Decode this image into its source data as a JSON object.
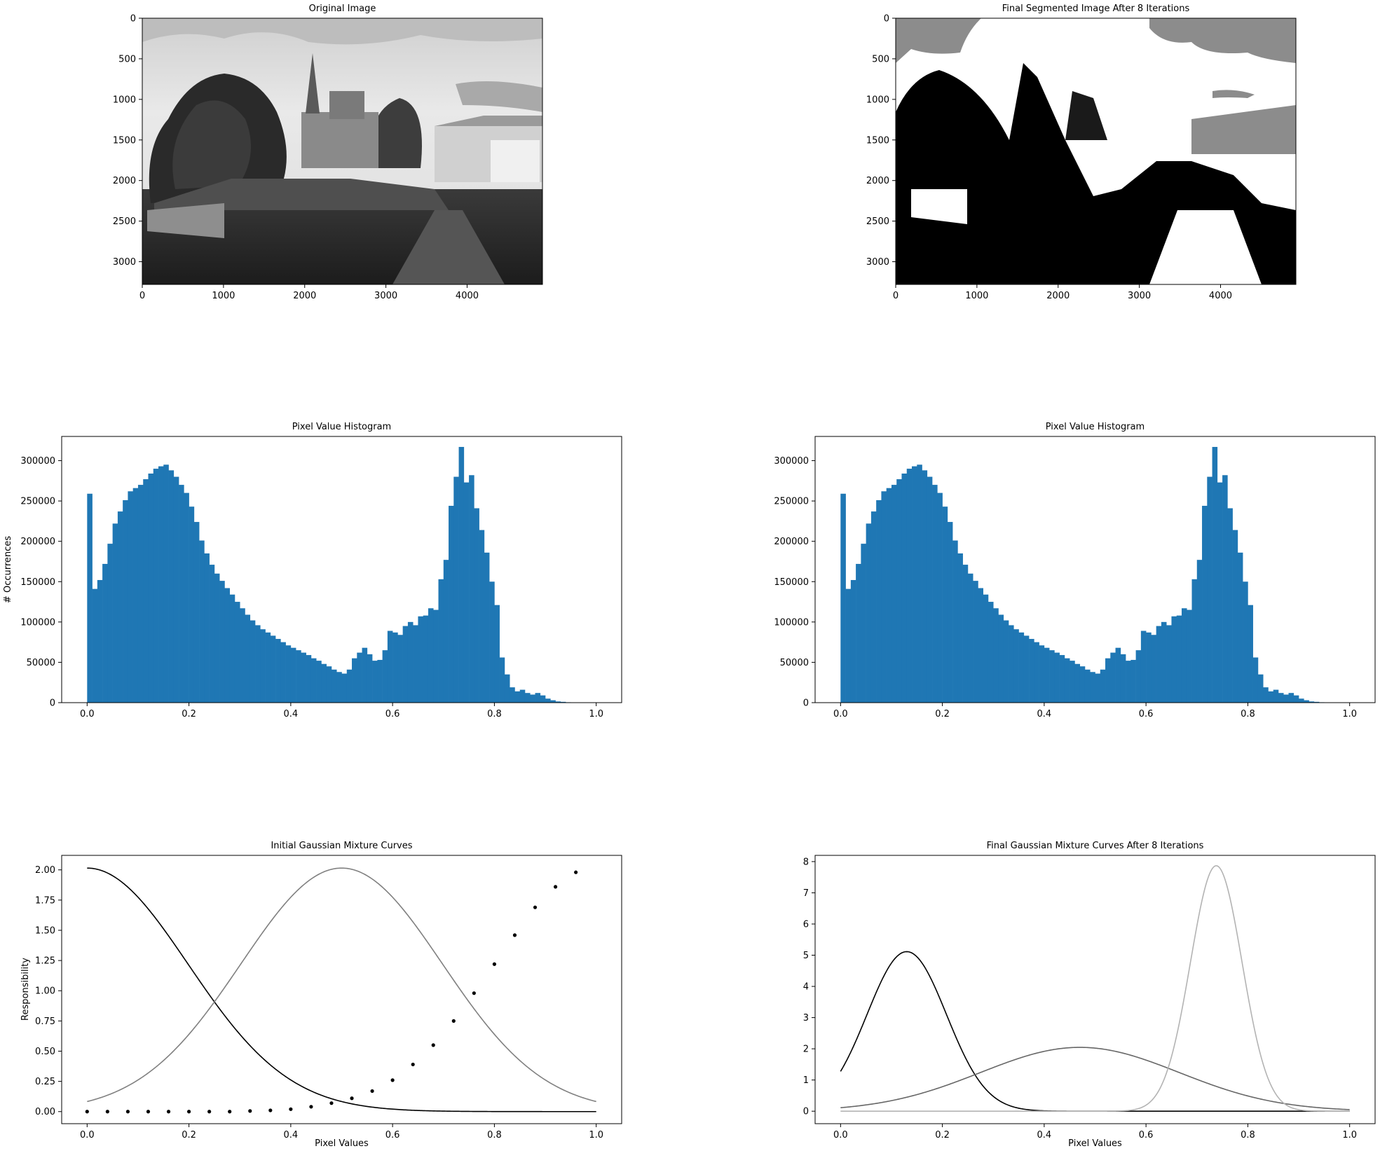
{
  "chart_data": [
    {
      "type": "image",
      "title": "Original Image",
      "xticks": [
        0,
        1000,
        2000,
        3000,
        4000
      ],
      "yticks": [
        0,
        500,
        1000,
        1500,
        2000,
        2500,
        3000
      ],
      "xlim": [
        0,
        4928
      ],
      "ylim": [
        3280,
        0
      ],
      "content": "grayscale photograph of a village street with a church spire, trees, stone wall and white houses"
    },
    {
      "type": "image",
      "title": "Final Segmented Image After 8 Iterations",
      "xticks": [
        0,
        1000,
        2000,
        3000,
        4000
      ],
      "yticks": [
        0,
        500,
        1000,
        1500,
        2000,
        2500,
        3000
      ],
      "xlim": [
        0,
        4928
      ],
      "ylim": [
        3280,
        0
      ],
      "content": "three-level segmentation of the photograph (black, gray, white)"
    },
    {
      "type": "bar",
      "title": "Pixel Value Histogram",
      "xlabel": "",
      "ylabel": "# Occurrences",
      "xlim": [
        -0.05,
        1.05
      ],
      "ylim": [
        0,
        330000
      ],
      "xticks": [
        "0.0",
        "0.2",
        "0.4",
        "0.6",
        "0.8",
        "1.0"
      ],
      "yticks": [
        "0",
        "50000",
        "100000",
        "150000",
        "200000",
        "250000",
        "300000"
      ],
      "bins": 100,
      "bin_range": [
        0,
        1
      ],
      "color": "#1f77b4",
      "values": [
        259000,
        141000,
        152000,
        172000,
        197000,
        222000,
        237000,
        251000,
        262000,
        266000,
        270000,
        277000,
        284000,
        290000,
        293000,
        295000,
        288000,
        280000,
        270000,
        260000,
        243000,
        224000,
        201000,
        185000,
        171000,
        160000,
        151000,
        142000,
        134000,
        125000,
        117000,
        109000,
        102000,
        96000,
        91000,
        87000,
        83000,
        79000,
        75000,
        71000,
        68000,
        65000,
        62000,
        59000,
        55000,
        52000,
        48000,
        45000,
        41000,
        38000,
        36000,
        41000,
        55000,
        62000,
        68000,
        60000,
        52000,
        53000,
        65000,
        89000,
        87000,
        84000,
        95000,
        100000,
        96000,
        107000,
        108000,
        117000,
        115000,
        153000,
        177000,
        244000,
        280000,
        317000,
        273000,
        282000,
        241000,
        214000,
        186000,
        150000,
        121000,
        56000,
        35000,
        19000,
        14000,
        16000,
        12000,
        10000,
        12000,
        9000,
        5000,
        3000,
        1500,
        1000,
        500,
        300,
        100,
        50,
        20,
        0
      ]
    },
    {
      "type": "bar",
      "title": "Pixel Value Histogram",
      "xlabel": "",
      "ylabel": "",
      "xlim": [
        -0.05,
        1.05
      ],
      "ylim": [
        0,
        330000
      ],
      "xticks": [
        "0.0",
        "0.2",
        "0.4",
        "0.6",
        "0.8",
        "1.0"
      ],
      "yticks": [
        "0",
        "50000",
        "100000",
        "150000",
        "200000",
        "250000",
        "300000"
      ],
      "bins": 100,
      "bin_range": [
        0,
        1
      ],
      "color": "#1f77b4",
      "values": [
        259000,
        141000,
        152000,
        172000,
        197000,
        222000,
        237000,
        251000,
        262000,
        266000,
        270000,
        277000,
        284000,
        290000,
        293000,
        295000,
        288000,
        280000,
        270000,
        260000,
        243000,
        224000,
        201000,
        185000,
        171000,
        160000,
        151000,
        142000,
        134000,
        125000,
        117000,
        109000,
        102000,
        96000,
        91000,
        87000,
        83000,
        79000,
        75000,
        71000,
        68000,
        65000,
        62000,
        59000,
        55000,
        52000,
        48000,
        45000,
        41000,
        38000,
        36000,
        41000,
        55000,
        62000,
        68000,
        60000,
        52000,
        53000,
        65000,
        89000,
        87000,
        84000,
        95000,
        100000,
        96000,
        107000,
        108000,
        117000,
        115000,
        153000,
        177000,
        244000,
        280000,
        317000,
        273000,
        282000,
        241000,
        214000,
        186000,
        150000,
        121000,
        56000,
        35000,
        19000,
        14000,
        16000,
        12000,
        10000,
        12000,
        9000,
        5000,
        3000,
        1500,
        1000,
        500,
        300,
        100,
        50,
        20,
        0
      ]
    },
    {
      "type": "line",
      "title": "Initial Gaussian Mixture Curves",
      "xlabel": "Pixel Values",
      "ylabel": "Responsibility",
      "xlim": [
        -0.05,
        1.05
      ],
      "ylim": [
        -0.1,
        2.12
      ],
      "xticks": [
        "0.0",
        "0.2",
        "0.4",
        "0.6",
        "0.8",
        "1.0"
      ],
      "yticks": [
        "0.00",
        "0.25",
        "0.50",
        "0.75",
        "1.00",
        "1.25",
        "1.50",
        "1.75",
        "2.00"
      ],
      "series": [
        {
          "kind": "gaussian",
          "mean": 0.0,
          "std": 0.198,
          "weight": 1,
          "color": "#000000",
          "style": "line"
        },
        {
          "kind": "gaussian",
          "mean": 0.5,
          "std": 0.198,
          "weight": 1,
          "color": "#808080",
          "style": "line"
        },
        {
          "kind": "points",
          "color": "#000000",
          "style": "dots",
          "x": [
            0.0,
            0.04,
            0.08,
            0.12,
            0.16,
            0.2,
            0.24,
            0.28,
            0.32,
            0.36,
            0.4,
            0.44,
            0.48,
            0.52,
            0.56,
            0.6,
            0.64,
            0.68,
            0.72,
            0.76,
            0.8,
            0.84,
            0.88,
            0.92,
            0.96
          ],
          "y": [
            0.0,
            0.0,
            0.0,
            0.0,
            0.0,
            0.0,
            0.0,
            0.0,
            0.005,
            0.01,
            0.02,
            0.04,
            0.07,
            0.11,
            0.17,
            0.26,
            0.39,
            0.55,
            0.75,
            0.98,
            1.22,
            1.46,
            1.69,
            1.86,
            1.98
          ]
        }
      ]
    },
    {
      "type": "line",
      "title": "Final Gaussian Mixture Curves After 8 Iterations",
      "xlabel": "Pixel Values",
      "ylabel": "",
      "xlim": [
        -0.05,
        1.05
      ],
      "ylim": [
        -0.4,
        8.2
      ],
      "xticks": [
        "0.0",
        "0.2",
        "0.4",
        "0.6",
        "0.8",
        "1.0"
      ],
      "yticks": [
        "0",
        "1",
        "2",
        "3",
        "4",
        "5",
        "6",
        "7",
        "8"
      ],
      "series": [
        {
          "kind": "gaussian",
          "mean": 0.13,
          "std": 0.078,
          "weight": 1,
          "color": "#000000",
          "style": "line"
        },
        {
          "kind": "gaussian",
          "mean": 0.47,
          "std": 0.195,
          "weight": 1,
          "color": "#666666",
          "style": "line"
        },
        {
          "kind": "gaussian",
          "mean": 0.738,
          "std": 0.0507,
          "weight": 1,
          "color": "#b3b3b3",
          "style": "line"
        }
      ]
    }
  ]
}
